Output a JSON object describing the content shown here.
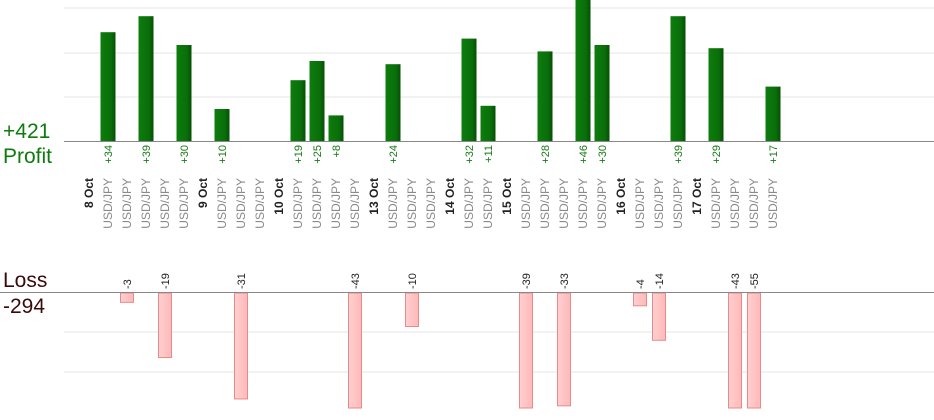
{
  "summary": {
    "profit_total": "+421",
    "profit_label": "Profit",
    "loss_label": "Loss",
    "loss_total": "-294"
  },
  "colors": {
    "profit_bar": "#0a6e0a",
    "profit_label": "#1a7a1a",
    "loss_bar": "#ffb8b8",
    "loss_bar_edge": "#e88a8a",
    "pair_text": "#8a8a8a",
    "date_text": "#222222",
    "gridline": "#e4e4e4",
    "axis": "#888888"
  },
  "chart_data": {
    "type": "bar",
    "title": "",
    "xlabel": "",
    "ylabel": "",
    "profit_ylim": [
      0,
      45
    ],
    "loss_ylim": [
      -35,
      0
    ],
    "groups": [
      {
        "date": "8 Oct",
        "trades": [
          {
            "pair": "USD/JPY",
            "value": 34,
            "label": "+34"
          },
          {
            "pair": "USD/JPY",
            "value": -3,
            "label": "-3"
          },
          {
            "pair": "USD/JPY",
            "value": 39,
            "label": "+39"
          },
          {
            "pair": "USD/JPY",
            "value": -19,
            "label": "-19"
          },
          {
            "pair": "USD/JPY",
            "value": 30,
            "label": "+30"
          }
        ]
      },
      {
        "date": "9 Oct",
        "trades": [
          {
            "pair": "USD/JPY",
            "value": 10,
            "label": "+10"
          },
          {
            "pair": "USD/JPY",
            "value": -31,
            "label": "-31"
          },
          {
            "pair": "USD/JPY",
            "value": null,
            "label": ""
          }
        ]
      },
      {
        "date": "10 Oct",
        "trades": [
          {
            "pair": "USD/JPY",
            "value": 19,
            "label": "+19"
          },
          {
            "pair": "USD/JPY",
            "value": 25,
            "label": "+25"
          },
          {
            "pair": "USD/JPY",
            "value": 8,
            "label": "+8"
          },
          {
            "pair": "USD/JPY",
            "value": -43,
            "label": "-43"
          }
        ]
      },
      {
        "date": "13 Oct",
        "trades": [
          {
            "pair": "USD/JPY",
            "value": 24,
            "label": "+24"
          },
          {
            "pair": "USD/JPY",
            "value": -10,
            "label": "-10"
          },
          {
            "pair": "USD/JPY",
            "value": null,
            "label": ""
          }
        ]
      },
      {
        "date": "14 Oct",
        "trades": [
          {
            "pair": "USD/JPY",
            "value": 32,
            "label": "+32"
          },
          {
            "pair": "USD/JPY",
            "value": 11,
            "label": "+11"
          }
        ]
      },
      {
        "date": "15 Oct",
        "trades": [
          {
            "pair": "USD/JPY",
            "value": -39,
            "label": "-39"
          },
          {
            "pair": "USD/JPY",
            "value": 28,
            "label": "+28"
          },
          {
            "pair": "USD/JPY",
            "value": -33,
            "label": "-33"
          },
          {
            "pair": "USD/JPY",
            "value": 46,
            "label": "+46"
          },
          {
            "pair": "USD/JPY",
            "value": 30,
            "label": "+30"
          }
        ]
      },
      {
        "date": "16 Oct",
        "trades": [
          {
            "pair": "USD/JPY",
            "value": -4,
            "label": "-4"
          },
          {
            "pair": "USD/JPY",
            "value": -14,
            "label": "-14"
          },
          {
            "pair": "USD/JPY",
            "value": 39,
            "label": "+39"
          }
        ]
      },
      {
        "date": "17 Oct",
        "trades": [
          {
            "pair": "USD/JPY",
            "value": 29,
            "label": "+29"
          },
          {
            "pair": "USD/JPY",
            "value": -43,
            "label": "-43"
          },
          {
            "pair": "USD/JPY",
            "value": -55,
            "label": "-55"
          },
          {
            "pair": "USD/JPY",
            "value": 17,
            "label": "+17"
          }
        ]
      }
    ]
  }
}
